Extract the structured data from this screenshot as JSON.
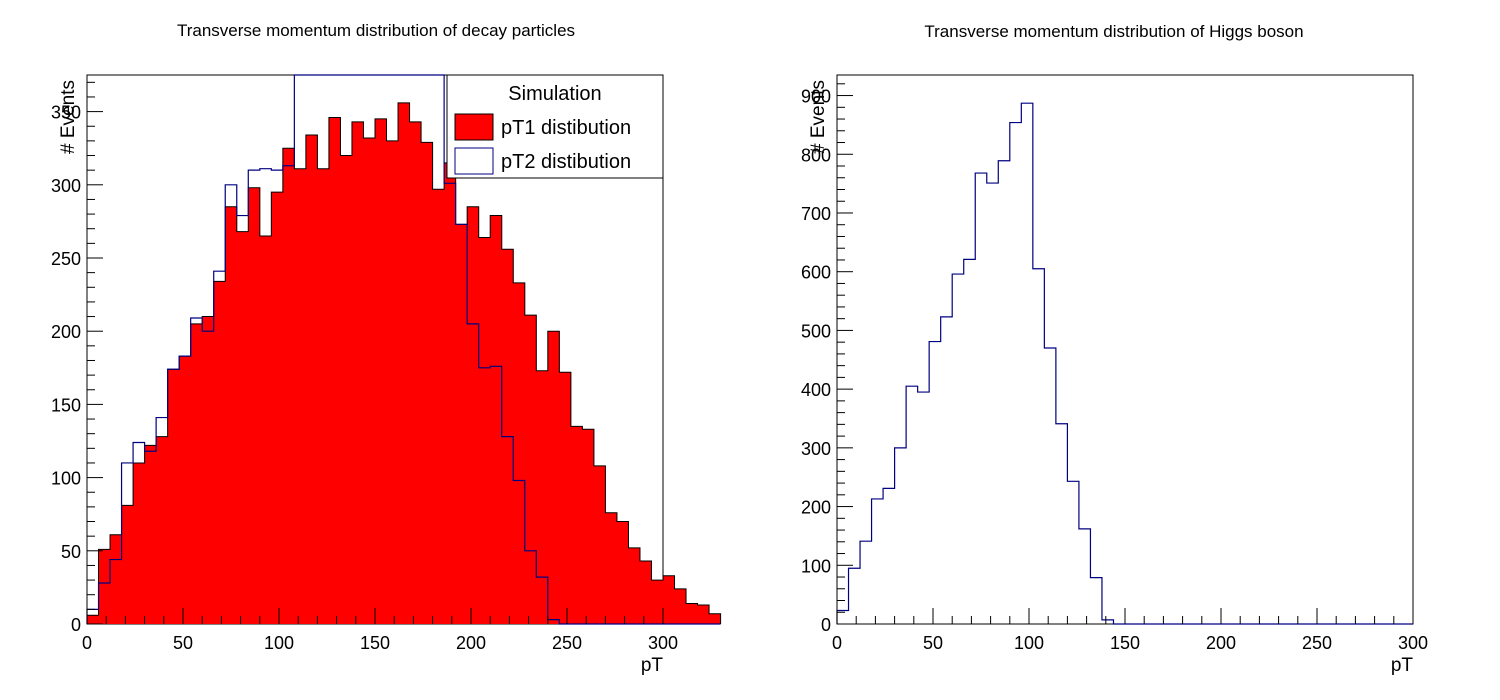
{
  "chart_data": [
    {
      "type": "bar",
      "title": "Transverse momentum distribution of decay particles",
      "xlabel": "pT",
      "ylabel": "# Events",
      "xlim": [
        0,
        300
      ],
      "ylim": [
        0,
        375
      ],
      "xticks": [
        0,
        50,
        100,
        150,
        200,
        250,
        300
      ],
      "yticks": [
        0,
        50,
        100,
        150,
        200,
        250,
        300,
        350
      ],
      "bin_width": 6,
      "legend": {
        "title": "Simulation",
        "placement": "top-right",
        "entries": [
          "pT1 distibution",
          "pT2 distibution"
        ]
      },
      "series": [
        {
          "name": "pT1 distibution",
          "style": "filled",
          "color": "#ff0000",
          "values": [
            6,
            51,
            61,
            81,
            110,
            122,
            128,
            174,
            183,
            205,
            210,
            234,
            285,
            268,
            298,
            265,
            295,
            325,
            311,
            334,
            311,
            346,
            320,
            343,
            332,
            345,
            330,
            356,
            343,
            329,
            297,
            315,
            273,
            285,
            264,
            279,
            256,
            233,
            211,
            173,
            200,
            172,
            135,
            133,
            108,
            76,
            70,
            52,
            43,
            30,
            33,
            24,
            14,
            13,
            7
          ]
        },
        {
          "name": "pT2 distibution",
          "style": "outline",
          "color": "#000080",
          "values": [
            10,
            28,
            44,
            110,
            124,
            118,
            141,
            174,
            183,
            209,
            200,
            241,
            300,
            279,
            310,
            311,
            310,
            313,
            380,
            380,
            380,
            380,
            380,
            380,
            380,
            380,
            380,
            380,
            380,
            380,
            380,
            301,
            273,
            205,
            175,
            176,
            128,
            98,
            50,
            32,
            3,
            0,
            0,
            0,
            0,
            0,
            0,
            0,
            0,
            0,
            0,
            0,
            0,
            0,
            0
          ]
        }
      ]
    },
    {
      "type": "bar",
      "title": "Transverse momentum distribution of Higgs boson",
      "xlabel": "pT",
      "ylabel": "# Events",
      "xlim": [
        0,
        300
      ],
      "ylim": [
        0,
        935
      ],
      "xticks": [
        0,
        50,
        100,
        150,
        200,
        250,
        300
      ],
      "yticks": [
        0,
        100,
        200,
        300,
        400,
        500,
        600,
        700,
        800,
        900
      ],
      "bin_width": 6,
      "series": [
        {
          "style": "outline",
          "color": "#000080",
          "values": [
            23,
            95,
            141,
            213,
            231,
            300,
            405,
            395,
            481,
            523,
            596,
            621,
            768,
            751,
            789,
            854,
            887,
            605,
            470,
            341,
            243,
            162,
            79,
            7,
            0,
            0,
            0,
            0,
            0,
            0,
            0,
            0,
            0,
            0,
            0,
            0,
            0,
            0,
            0,
            0,
            0,
            0,
            0,
            0,
            0,
            0,
            0,
            0,
            0,
            0
          ]
        }
      ]
    }
  ]
}
